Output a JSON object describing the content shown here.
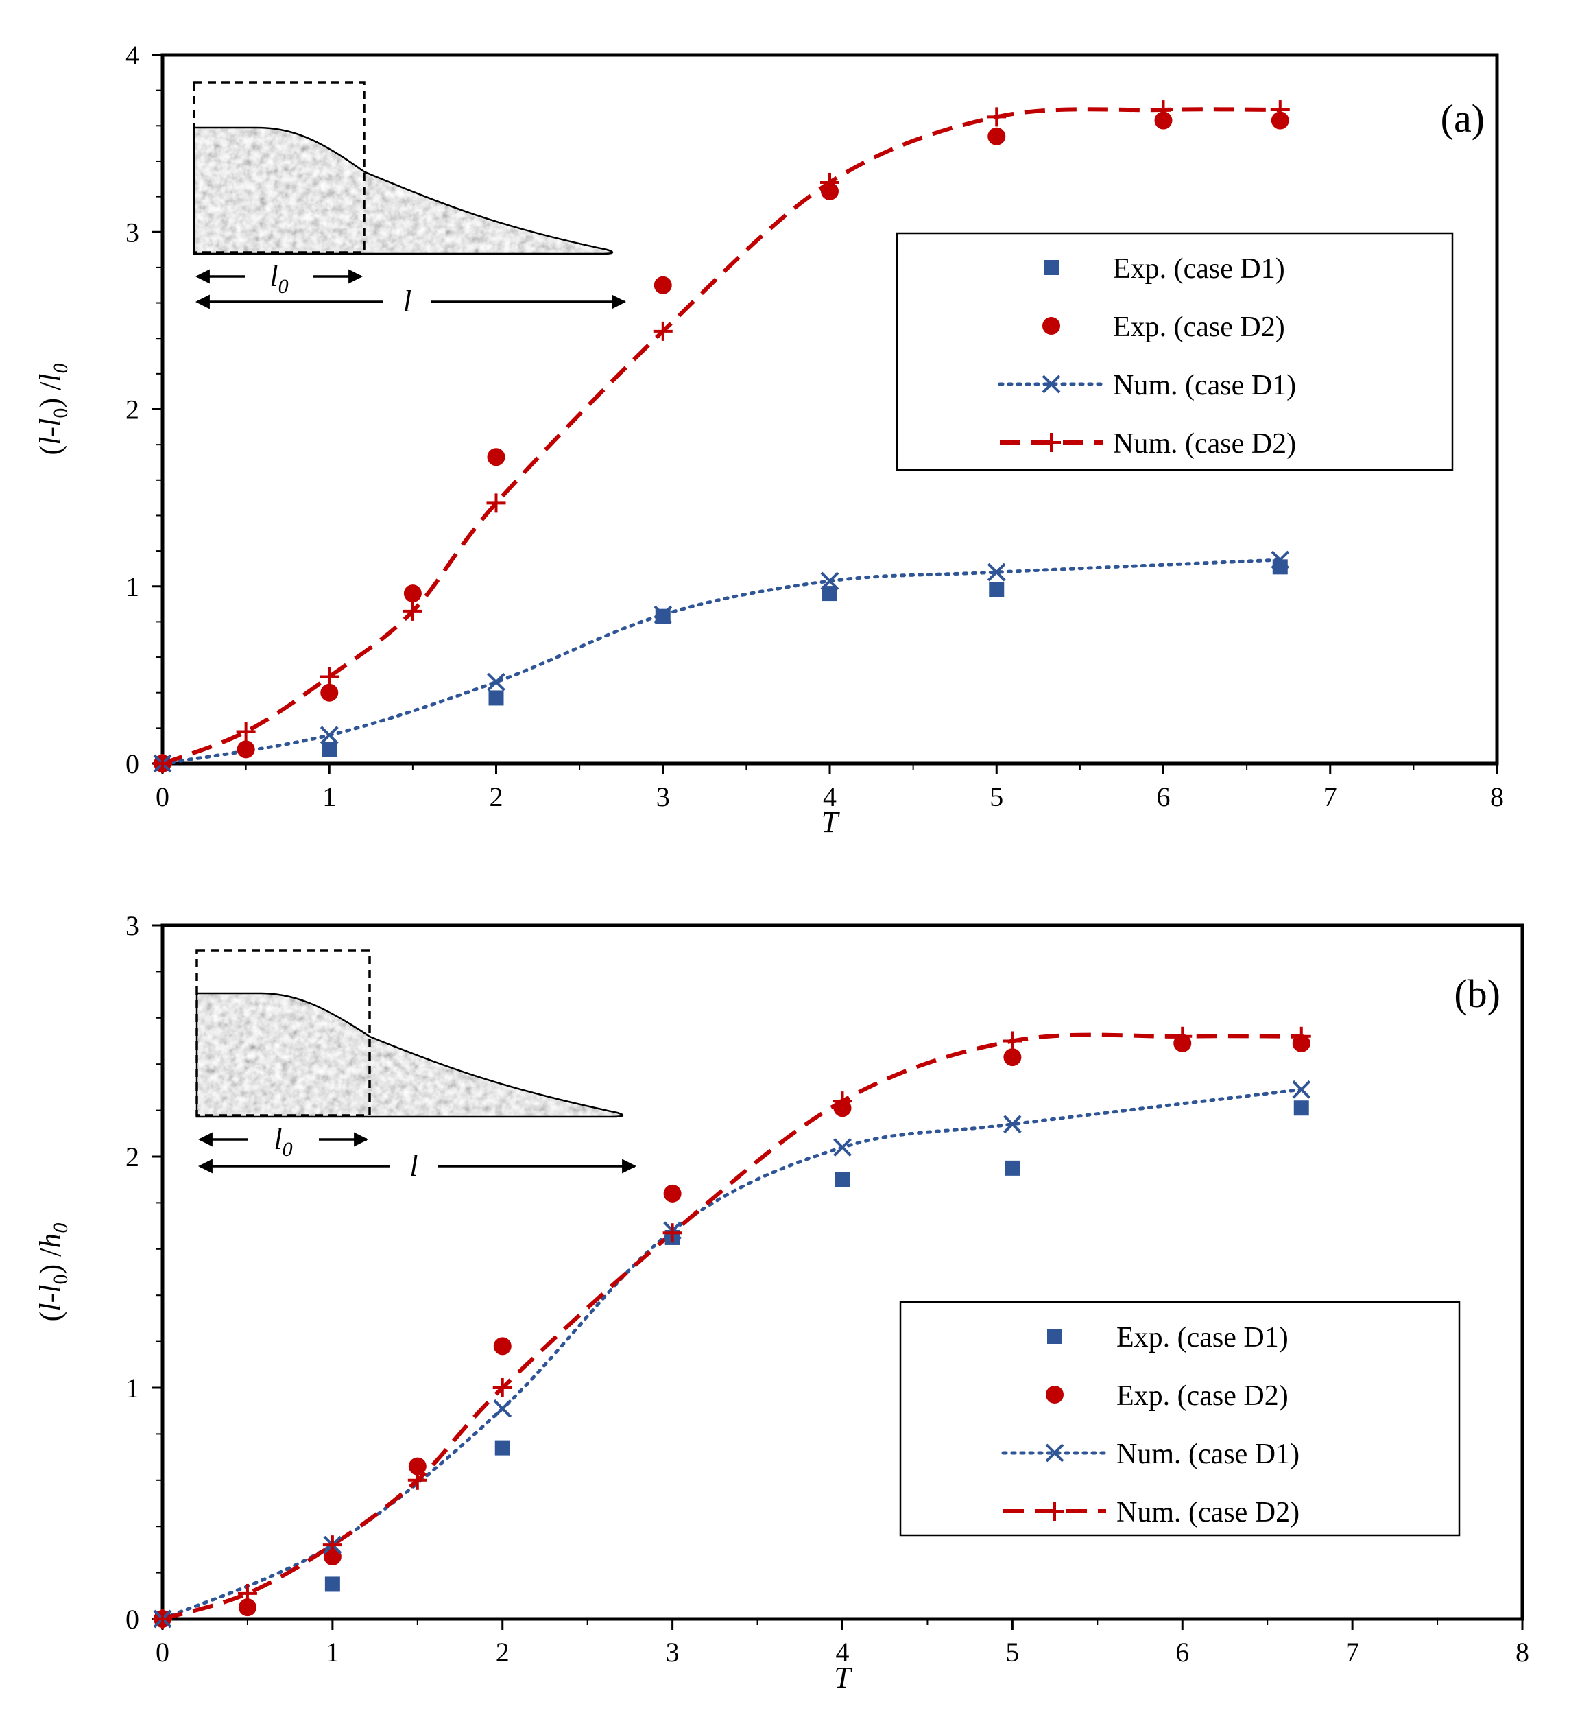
{
  "colors": {
    "d1": "#2f5597",
    "d2": "#c00000",
    "axis": "#000000"
  },
  "chart_data": [
    {
      "type": "scatter",
      "panel_label": "(a)",
      "xlabel": "T",
      "ylabel_parts": {
        "open": "(",
        "l": "l",
        "dash": "-",
        "l0": "l",
        "sub0": "0",
        "close": ") /",
        "den": "l",
        "densub": "0"
      },
      "xlim": [
        0,
        8
      ],
      "ylim": [
        0,
        4
      ],
      "xticks": [
        0,
        1,
        2,
        3,
        4,
        5,
        6,
        7,
        8
      ],
      "yticks": [
        0,
        1,
        2,
        3,
        4
      ],
      "legend_position": "right",
      "inset": {
        "l0_label": "l",
        "l0_sub": "0",
        "l_label": "l"
      },
      "series": [
        {
          "name": "Exp. (case D1)",
          "marker": "square",
          "color": "#2f5597",
          "x": [
            0,
            1,
            2,
            3,
            4,
            5,
            6.7
          ],
          "y": [
            0,
            0.08,
            0.37,
            0.83,
            0.96,
            0.98,
            1.11
          ]
        },
        {
          "name": "Exp. (case D2)",
          "marker": "circle",
          "color": "#c00000",
          "x": [
            0,
            0.5,
            1,
            1.5,
            2,
            3,
            4,
            5,
            6,
            6.7
          ],
          "y": [
            0,
            0.08,
            0.4,
            0.96,
            1.73,
            2.7,
            3.23,
            3.54,
            3.63,
            3.63
          ]
        },
        {
          "name": "Num. (case D1)",
          "marker": "x",
          "line": "dotted",
          "color": "#2f5597",
          "x": [
            0,
            1,
            2,
            3,
            4,
            5,
            6.7
          ],
          "y": [
            0,
            0.16,
            0.46,
            0.84,
            1.03,
            1.08,
            1.15
          ]
        },
        {
          "name": "Num. (case D2)",
          "marker": "plus",
          "line": "dashed",
          "color": "#c00000",
          "x": [
            0,
            0.5,
            1,
            1.5,
            2,
            3,
            4,
            5,
            6,
            6.7
          ],
          "y": [
            0,
            0.18,
            0.49,
            0.86,
            1.47,
            2.44,
            3.28,
            3.65,
            3.69,
            3.69
          ]
        }
      ]
    },
    {
      "type": "scatter",
      "panel_label": "(b)",
      "xlabel": "T",
      "ylabel_parts": {
        "open": "(",
        "l": "l",
        "dash": "-",
        "l0": "l",
        "sub0": "0",
        "close": ") /",
        "den": "h",
        "densub": "0"
      },
      "xlim": [
        0,
        8
      ],
      "ylim": [
        0,
        3
      ],
      "xticks": [
        0,
        1,
        2,
        3,
        4,
        5,
        6,
        7,
        8
      ],
      "yticks": [
        0,
        1,
        2,
        3
      ],
      "legend_position": "bottom-right",
      "inset": {
        "l0_label": "l",
        "l0_sub": "0",
        "l_label": "l"
      },
      "series": [
        {
          "name": "Exp. (case D1)",
          "marker": "square",
          "color": "#2f5597",
          "x": [
            0,
            1,
            2,
            3,
            4,
            5,
            6.7
          ],
          "y": [
            0,
            0.15,
            0.74,
            1.65,
            1.9,
            1.95,
            2.21
          ]
        },
        {
          "name": "Exp. (case D2)",
          "marker": "circle",
          "color": "#c00000",
          "x": [
            0,
            0.5,
            1,
            1.5,
            2,
            3,
            4,
            5,
            6,
            6.7
          ],
          "y": [
            0,
            0.05,
            0.27,
            0.66,
            1.18,
            1.84,
            2.21,
            2.43,
            2.49,
            2.49
          ]
        },
        {
          "name": "Num. (case D1)",
          "marker": "x",
          "line": "dotted",
          "color": "#2f5597",
          "x": [
            0,
            1,
            2,
            3,
            4,
            5,
            6.7
          ],
          "y": [
            0,
            0.32,
            0.91,
            1.68,
            2.04,
            2.14,
            2.29
          ]
        },
        {
          "name": "Num. (case D2)",
          "marker": "plus",
          "line": "dashed",
          "color": "#c00000",
          "x": [
            0,
            0.5,
            1,
            1.5,
            2,
            3,
            4,
            5,
            6,
            6.7
          ],
          "y": [
            0,
            0.11,
            0.32,
            0.6,
            1.0,
            1.67,
            2.24,
            2.5,
            2.52,
            2.52
          ]
        }
      ]
    }
  ]
}
